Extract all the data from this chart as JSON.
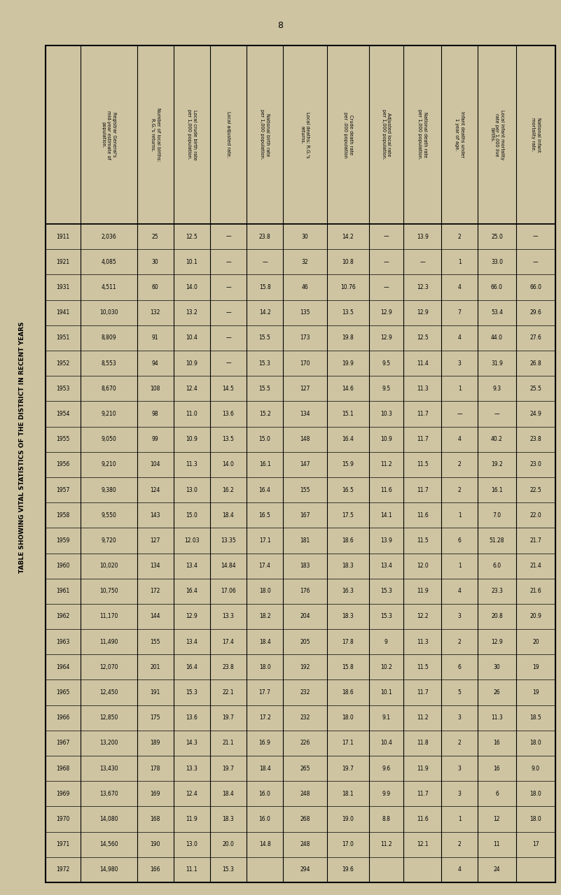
{
  "title": "TABLE SHOWING VITAL STATISTICS OF THE DISTRICT IN RECENT YEARS",
  "page_number": "8",
  "bg_color": "#cec4a2",
  "years": [
    "1911",
    "1921",
    "1931",
    "1941",
    "1951",
    "1952",
    "1953",
    "1954",
    "1955",
    "1956",
    "1957",
    "1958",
    "1959",
    "1960",
    "1961",
    "1962",
    "1963",
    "1964",
    "1965",
    "1966",
    "1967",
    "1968",
    "1969",
    "1970",
    "1971",
    "1972"
  ],
  "col_headers": [
    "Registrar General's\nmid-year estimate of\npopulation.",
    "Number of local births:\nR.G.'s returns.",
    "Local crude birth rate\nper 1,000 population.",
    "Local adjusted rate.",
    "National birth rate\nper 1,000 population.",
    "Local deaths: R.G.'s\nreturns.",
    "Crude death rate\nper .000 population",
    "Adjusted local rate\nper 1,000 population.",
    "National death rate\nper 1,000 population.",
    "Infant deaths under\n1 year of age.",
    "Local infant mortality\nrate per 1,000 live\nbirths.",
    "National infant\nmortality rate."
  ],
  "data": {
    "registrar_pop": [
      "2,036",
      "4,085",
      "4,511",
      "10,030",
      "8,809",
      "8,553",
      "8,670",
      "9,210",
      "9,050",
      "9,210",
      "9,380",
      "9,550",
      "9,720",
      "10,020",
      "10,750",
      "11,170",
      "11,490",
      "12,070",
      "12,450",
      "12,850",
      "13,200",
      "13,430",
      "13,670",
      "14,080",
      "14,560",
      "14,980"
    ],
    "local_births": [
      "25",
      "30",
      "60",
      "132",
      "91",
      "94",
      "108",
      "98",
      "99",
      "104",
      "124",
      "143",
      "127",
      "134",
      "172",
      "144",
      "155",
      "201",
      "191",
      "175",
      "189",
      "178",
      "169",
      "168",
      "190",
      "166"
    ],
    "local_crude_birth": [
      "12.5",
      "10.1",
      "14.0",
      "13.2",
      "10.4",
      "10.9",
      "12.4",
      "11.0",
      "10.9",
      "11.3",
      "13.0",
      "15.0",
      "12.03",
      "13.4",
      "16.4",
      "12.9",
      "13.4",
      "16.4",
      "15.3",
      "13.6",
      "14.3",
      "13.3",
      "12.4",
      "11.9",
      "13.0",
      "11.1"
    ],
    "local_adjusted": [
      "|",
      "|",
      "|",
      "|",
      "|",
      "|",
      "14.5",
      "13.6",
      "13.5",
      "14.0",
      "16.2",
      "18.4",
      "13.35",
      "14.84",
      "17.06",
      "13.3",
      "17.4",
      "23.8",
      "22.1",
      "19.7",
      "21.1",
      "19.7",
      "18.4",
      "18.3",
      "20.0",
      "15.3"
    ],
    "national_birth": [
      "23.8",
      "|",
      "15.8",
      "14.2",
      "15.5",
      "15.3",
      "15.5",
      "15.2",
      "15.0",
      "16.1",
      "16.4",
      "16.5",
      "17.1",
      "17.4",
      "18.0",
      "18.2",
      "18.4",
      "18.0",
      "17.7",
      "17.2",
      "16.9",
      "18.4",
      "16.0",
      "16.0",
      "14.8",
      ""
    ],
    "local_deaths": [
      "30",
      "32",
      "46",
      "135",
      "173",
      "170",
      "127",
      "134",
      "148",
      "147",
      "155",
      "167",
      "181",
      "183",
      "176",
      "204",
      "205",
      "192",
      "232",
      "232",
      "226",
      "265",
      "248",
      "268",
      "248",
      "294"
    ],
    "crude_death": [
      "14.2",
      "10.8",
      "10.76",
      "13.5",
      "19.8",
      "19.9",
      "14.6",
      "15.1",
      "16.4",
      "15.9",
      "16.5",
      "17.5",
      "18.6",
      "18.3",
      "16.3",
      "18.3",
      "17.8",
      "15.8",
      "18.6",
      "18.0",
      "17.1",
      "19.7",
      "18.1",
      "19.0",
      "17.0",
      "19.6"
    ],
    "adjusted_local": [
      "|",
      "|",
      "|",
      "12.9",
      "12.9",
      "9.5",
      "9.5",
      "10.3",
      "10.9",
      "11.2",
      "11.6",
      "14.1",
      "13.9",
      "13.4",
      "15.3",
      "15.3",
      "9",
      "10.2",
      "10.1",
      "9.1",
      "10.4",
      "9.6",
      "9.9",
      "8.8",
      "11.2",
      ""
    ],
    "national_death": [
      "13.9",
      "|",
      "12.3",
      "12.9",
      "12.5",
      "11.4",
      "11.3",
      "11.7",
      "11.7",
      "11.5",
      "11.7",
      "11.6",
      "11.5",
      "12.0",
      "11.9",
      "12.2",
      "11.3",
      "11.5",
      "11.7",
      "11.2",
      "11.8",
      "11.9",
      "11.7",
      "11.6",
      "12.1",
      ""
    ],
    "infant_deaths": [
      "2",
      "1",
      "4",
      "7",
      "4",
      "3",
      "1",
      "|",
      "4",
      "2",
      "2",
      "1",
      "6",
      "1",
      "4",
      "3",
      "2",
      "6",
      "5",
      "3",
      "2",
      "3",
      "3",
      "1",
      "2",
      "4"
    ],
    "local_infant_mort": [
      "25.0",
      "33.0",
      "66.0",
      "53.4",
      "44.0",
      "31.9",
      "9.3",
      "|",
      "40.2",
      "19.2",
      "16.1",
      "7.0",
      "51.28",
      "6.0",
      "23.3",
      "20.8",
      "12.9",
      "30",
      "26",
      "11.3",
      "16",
      "16",
      "6",
      "12",
      "11",
      "24"
    ],
    "national_infant_mort": [
      "|",
      "|",
      "66.0",
      "29.6",
      "27.6",
      "26.8",
      "25.5",
      "24.9",
      "23.8",
      "23.0",
      "22.5",
      "22.0",
      "21.7",
      "21.4",
      "21.6",
      "20.9",
      "20",
      "19",
      "19",
      "18.5",
      "18.0",
      "9.0",
      "18.0",
      "18.0",
      "17",
      ""
    ]
  }
}
